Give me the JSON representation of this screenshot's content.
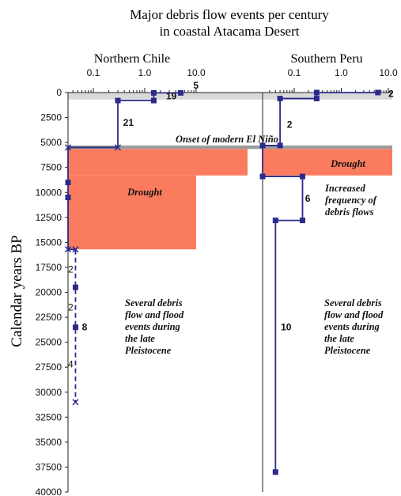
{
  "chart_data": {
    "type": "line",
    "title_line1": "Major debris flow events per century",
    "title_line2": "in coastal Atacama Desert",
    "ylabel": "Calendar years BP",
    "ylim": [
      0,
      40000
    ],
    "y_ticks": [
      "0",
      "2500",
      "5000",
      "7500",
      "10000",
      "12500",
      "15000",
      "17500",
      "20000",
      "22500",
      "25000",
      "27500",
      "30000",
      "32500",
      "35000",
      "37500",
      "40000"
    ],
    "x_scale": "log",
    "xlim": [
      0.01,
      10
    ],
    "x_tick_labels": [
      "0.1",
      "1.0",
      "10.0"
    ],
    "panels": [
      {
        "name": "Northern Chile",
        "bands": [
          {
            "kind": "modern",
            "from": 0,
            "to": 700
          },
          {
            "kind": "elnino",
            "from": 5300,
            "to": 5650
          },
          {
            "kind": "drought",
            "from": 5650,
            "to": 8300,
            "x_end": 100
          },
          {
            "kind": "drought",
            "from": 8300,
            "to": 15700,
            "x_end": 10
          }
        ],
        "series": [
          {
            "style": "solid",
            "points": [
              [
                5,
                0
              ],
              [
                5,
                30
              ],
              [
                1.5,
                30
              ],
              [
                1.5,
                800
              ],
              [
                0.3,
                800
              ],
              [
                0.3,
                5500
              ],
              [
                0.01,
                5500
              ],
              [
                0.01,
                15700
              ],
              [
                0.045,
                15700
              ],
              [
                0.045,
                19500
              ],
              [
                0.045,
                23500
              ],
              [
                0.045,
                31000
              ]
            ]
          }
        ],
        "markers": [
          [
            5,
            30
          ],
          [
            1.5,
            30
          ],
          [
            1.5,
            800
          ],
          [
            0.3,
            800
          ],
          [
            0.01,
            9000
          ],
          [
            0.01,
            10500
          ],
          [
            0.045,
            19500
          ],
          [
            0.045,
            23500
          ]
        ],
        "x_markers": [
          [
            0.3,
            5500
          ],
          [
            0.01,
            5500
          ],
          [
            0.01,
            15700
          ],
          [
            0.045,
            15700
          ],
          [
            0.045,
            31000
          ]
        ],
        "dashed_from": 15700,
        "counts": [
          {
            "text": "5",
            "x": 8.8,
            "y": -700,
            "bold": true
          },
          {
            "text": "19",
            "x": 2.6,
            "y": 350,
            "bold": true
          },
          {
            "text": "21",
            "x": 0.38,
            "y": 3000,
            "bold": true
          },
          {
            "text": "2",
            "x": 0.025,
            "y": 17700,
            "bold": false
          },
          {
            "text": "2",
            "x": 0.025,
            "y": 21500,
            "bold": false
          },
          {
            "text": "8",
            "x": 0.06,
            "y": 23500,
            "bold": true
          },
          {
            "text": "4",
            "x": 0.025,
            "y": 27200,
            "bold": false
          }
        ]
      },
      {
        "name": "Southern Peru",
        "bands": [
          {
            "kind": "modern",
            "from": 0,
            "to": 700
          },
          {
            "kind": "elnino",
            "from": 5300,
            "to": 5650
          },
          {
            "kind": "drought",
            "from": 5650,
            "to": 8300,
            "x_end": 100
          }
        ],
        "series": [
          {
            "style": "solid",
            "points": [
              [
                6,
                0
              ],
              [
                0.3,
                0
              ],
              [
                0.3,
                600
              ],
              [
                0.05,
                600
              ],
              [
                0.05,
                5300
              ],
              [
                0.01,
                5300
              ],
              [
                0.01,
                8400
              ],
              [
                0.15,
                8400
              ],
              [
                0.15,
                12800
              ],
              [
                0.04,
                12800
              ],
              [
                0.04,
                38000
              ]
            ]
          }
        ],
        "markers": [
          [
            6,
            0
          ],
          [
            0.3,
            0
          ],
          [
            0.3,
            600
          ],
          [
            0.05,
            600
          ],
          [
            0.05,
            5300
          ],
          [
            0.01,
            5300
          ],
          [
            0.01,
            8400
          ],
          [
            0.15,
            8400
          ],
          [
            0.15,
            12800
          ],
          [
            0.04,
            12800
          ],
          [
            0.04,
            38000
          ]
        ],
        "x_markers": [],
        "dashed_from": null,
        "counts": [
          {
            "text": "2",
            "x": 10,
            "y": 100,
            "bold": true
          },
          {
            "text": "2",
            "x": 0.07,
            "y": 3200,
            "bold": true
          },
          {
            "text": "6",
            "x": 0.17,
            "y": 10600,
            "bold": true
          },
          {
            "text": "10",
            "x": 0.052,
            "y": 23500,
            "bold": true
          }
        ]
      }
    ],
    "annotations": {
      "onset": "Onset of modern El Niño",
      "drought_chile": "Drought",
      "drought_peru": "Drought",
      "increased": [
        "Increased",
        "frequency of",
        "debris flows"
      ],
      "pleistocene": [
        "Several debris",
        "flow and flood",
        "events during",
        "the late",
        "Pleistocene"
      ]
    },
    "colors": {
      "line": "#2b2a8a",
      "drought": "#fb7b5e",
      "modern_band": "#d9d9d9",
      "elnino_band": "#9c9c9c"
    }
  }
}
